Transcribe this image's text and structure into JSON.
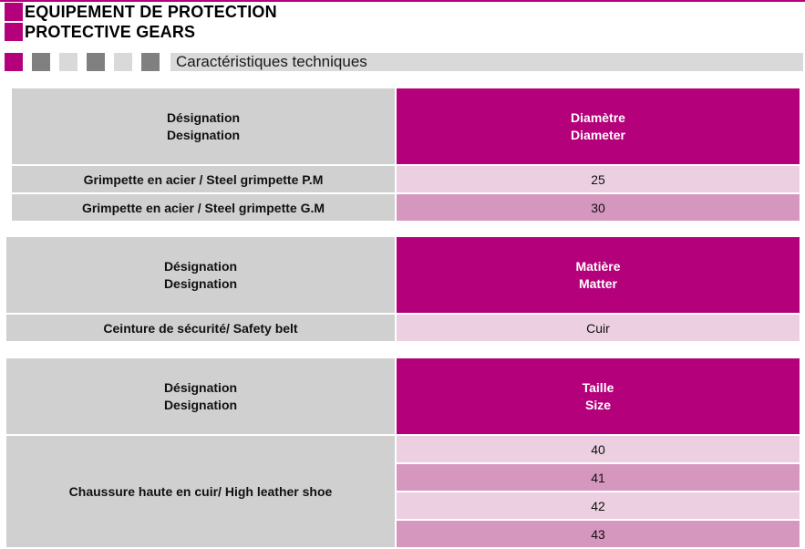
{
  "header": {
    "title_fr": "EQUIPEMENT DE PROTECTION",
    "title_en": "PROTECTIVE GEARS",
    "section_label": "Caractéristiques techniques"
  },
  "colors": {
    "accent": "#b5007b",
    "row_light": "#ecd0e2",
    "row_mid": "#d697bf",
    "label_grey": "#d0d0d0"
  },
  "tables": [
    {
      "head_left_fr": "Désignation",
      "head_left_en": "Designation",
      "head_right_fr": "Diamètre",
      "head_right_en": "Diameter",
      "rows": [
        {
          "designation": "Grimpette en acier / Steel grimpette P.M",
          "value": "25"
        },
        {
          "designation": "Grimpette en acier / Steel grimpette G.M",
          "value": "30"
        }
      ]
    },
    {
      "head_left_fr": "Désignation",
      "head_left_en": "Designation",
      "head_right_fr": "Matière",
      "head_right_en": "Matter",
      "rows": [
        {
          "designation": "Ceinture de sécurité/ Safety belt",
          "value": "Cuir"
        }
      ]
    },
    {
      "head_left_fr": "Désignation",
      "head_left_en": "Designation",
      "head_right_fr": "Taille",
      "head_right_en": "Size",
      "designation": "Chaussure haute en cuir/ High leather shoe",
      "sizes": [
        "40",
        "41",
        "42",
        "43"
      ]
    }
  ]
}
